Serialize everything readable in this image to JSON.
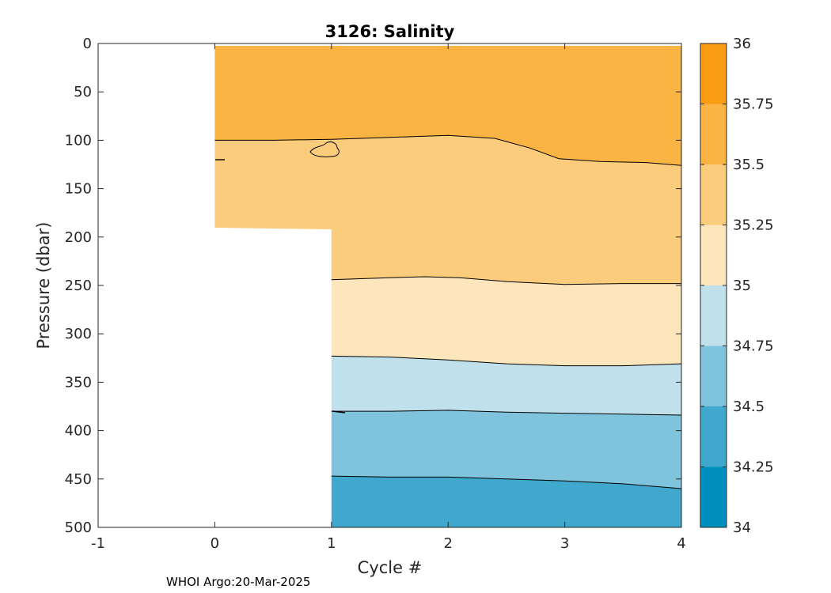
{
  "chart_data": {
    "type": "contour",
    "title": "3126:  Salinity",
    "xlabel": "Cycle #",
    "ylabel": "Pressure (dbar)",
    "xlim": [
      -1,
      4
    ],
    "ylim": [
      0,
      500
    ],
    "y_reversed": true,
    "x_ticks": [
      -1,
      0,
      1,
      2,
      3,
      4
    ],
    "y_ticks": [
      0,
      50,
      100,
      150,
      200,
      250,
      300,
      350,
      400,
      450,
      500
    ],
    "colorbar": {
      "ticks": [
        "34",
        "34.25",
        "34.5",
        "34.75",
        "35",
        "35.25",
        "35.5",
        "35.75",
        "36"
      ],
      "levels": [
        {
          "range": [
            34.0,
            34.25
          ],
          "color": "#0090bd"
        },
        {
          "range": [
            34.25,
            34.5
          ],
          "color": "#3fa8cc"
        },
        {
          "range": [
            34.5,
            34.75
          ],
          "color": "#7fc3dc"
        },
        {
          "range": [
            34.75,
            35.0
          ],
          "color": "#c0e1ec"
        },
        {
          "range": [
            35.0,
            35.25
          ],
          "color": "#fde5bc"
        },
        {
          "range": [
            35.25,
            35.5
          ],
          "color": "#fbcc7b"
        },
        {
          "range": [
            35.5,
            35.75
          ],
          "color": "#fab444"
        },
        {
          "range": [
            35.75,
            36.0
          ],
          "color": "#fa9b14"
        }
      ]
    },
    "data_extent": {
      "cycle_0_max_pressure": 192,
      "cycles_1_to_4_max_pressure": 500
    },
    "bands": [
      {
        "level": "35.5-35.75",
        "color": "#fab444",
        "x": [
          0,
          4
        ]
      },
      {
        "level": "35.25-35.5",
        "color": "#fbcc7b",
        "x": [
          0,
          4
        ]
      },
      {
        "level": "35-35.25",
        "color": "#fde5bc",
        "x": [
          1,
          4
        ]
      },
      {
        "level": "34.75-35",
        "color": "#c0e1ec",
        "x": [
          1,
          4
        ]
      },
      {
        "level": "34.5-34.75",
        "color": "#7fc3dc",
        "x": [
          1,
          4
        ]
      },
      {
        "level": "34.25-34.5",
        "color": "#3fa8cc",
        "x": [
          1,
          4
        ]
      }
    ],
    "contours": [
      {
        "level": 35.5,
        "x": [
          0,
          0.5,
          1,
          1.5,
          2,
          2.4,
          2.7,
          2.95,
          3.3,
          3.7,
          4.0
        ],
        "y": [
          100,
          100,
          99,
          97,
          95,
          98,
          108,
          119,
          122,
          123,
          126
        ]
      },
      {
        "level": 35.25,
        "x": [
          1,
          1.5,
          1.8,
          2.1,
          2.5,
          3.0,
          3.5,
          4.0
        ],
        "y": [
          244,
          242,
          241,
          242,
          246,
          249,
          248,
          248
        ]
      },
      {
        "level": 35.0,
        "x": [
          1,
          1.5,
          2.0,
          2.5,
          3.0,
          3.5,
          4.0
        ],
        "y": [
          323,
          324,
          327,
          331,
          333,
          333,
          331
        ]
      },
      {
        "level": 34.75,
        "x": [
          1,
          1.5,
          2.0,
          2.5,
          3.0,
          3.5,
          4.0
        ],
        "y": [
          380,
          380,
          379,
          381,
          382,
          383,
          384
        ]
      },
      {
        "level": 34.5,
        "x": [
          1,
          1.5,
          2.0,
          2.5,
          3.0,
          3.5,
          4.0
        ],
        "y": [
          447,
          448,
          448,
          450,
          452,
          455,
          460
        ]
      }
    ]
  },
  "footer": "WHOI Argo:20-Mar-2025"
}
